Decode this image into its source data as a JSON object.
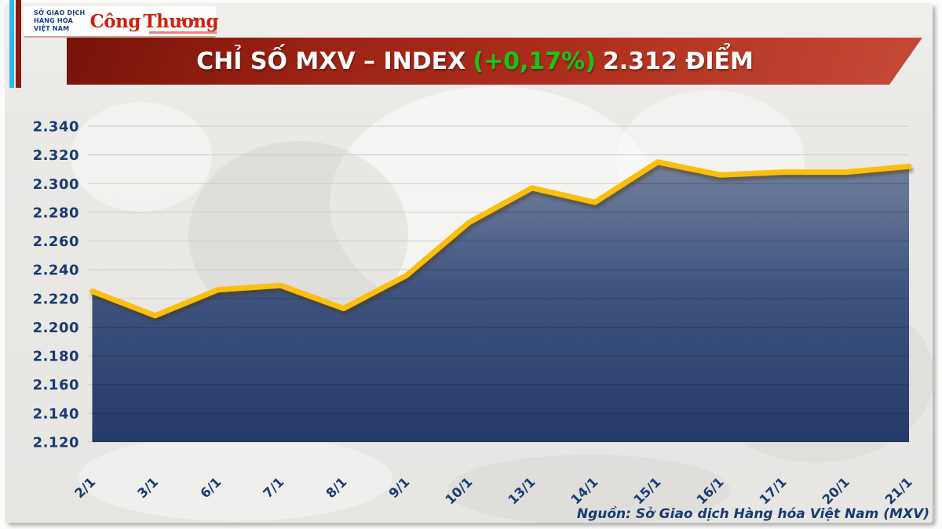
{
  "header": {
    "mxv": {
      "line1": "SỞ GIAO DỊCH",
      "line2": "HÀNG HÓA",
      "line3": "VIỆT NAM"
    },
    "congthuong": {
      "text": "Công Thương"
    }
  },
  "banner": {
    "title_prefix": "CHỈ SỐ MXV – INDEX",
    "change": "(+0,17%)",
    "value_suffix": "2.312 ĐIỂM"
  },
  "chart_data": {
    "type": "area",
    "title": "CHỈ SỐ MXV – INDEX",
    "categories": [
      "2/1",
      "3/1",
      "6/1",
      "7/1",
      "8/1",
      "9/1",
      "10/1",
      "13/1",
      "14/1",
      "15/1",
      "16/1",
      "17/1",
      "20/1",
      "21/1"
    ],
    "series": [
      {
        "name": "MXV-Index",
        "values": [
          2225,
          2208,
          2226,
          2229,
          2213,
          2236,
          2273,
          2297,
          2287,
          2315,
          2306,
          2308,
          2308,
          2312
        ]
      }
    ],
    "xlabel": "",
    "ylabel": "",
    "ylim": [
      2120,
      2340
    ],
    "y_tick_step": 20,
    "y_tick_labels": [
      "2.340",
      "2.320",
      "2.300",
      "2.280",
      "2.260",
      "2.240",
      "2.220",
      "2.200",
      "2.180",
      "2.160",
      "2.140",
      "2.120"
    ],
    "grid": true,
    "legend": false
  },
  "footer": {
    "source": "Nguồn: Sở Giao dịch Hàng hóa Việt Nam (MXV)"
  },
  "colors": {
    "banner_red": "#9c2315",
    "change_green": "#17c517",
    "line_gold": "#fcbe0c",
    "area_top": "#75829f",
    "area_bottom": "#253a68",
    "label_navy": "#1a3a73",
    "stripe_cyan": "#2bb8e9",
    "stripe_maroon": "#8a1b10",
    "congthuong_red": "#cf200f"
  }
}
